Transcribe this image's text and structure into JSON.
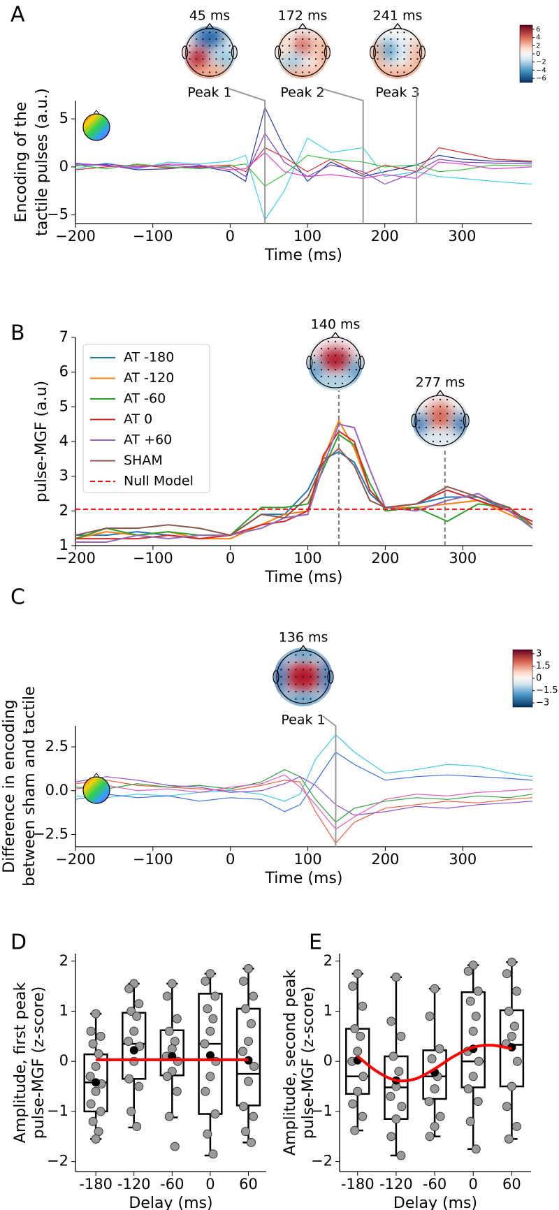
{
  "chart_data": [
    {
      "type": "line",
      "letter": "A",
      "xlabel": "Time (ms)",
      "ylabel": [
        "Encoding of the",
        "tactile pulses (a.u.)"
      ],
      "xlim": [
        -200,
        390
      ],
      "ylim": [
        -5.9,
        6.9
      ],
      "xticks": [
        {
          "value": -200,
          "label": "−200"
        },
        {
          "value": -100,
          "label": "−100"
        },
        0,
        100,
        200,
        300
      ],
      "yticks": [
        {
          "value": -5,
          "label": "−5"
        },
        0,
        5
      ],
      "x": [
        -200,
        -160,
        -120,
        -80,
        -40,
        0,
        20,
        45,
        70,
        100,
        130,
        172,
        200,
        241,
        270,
        300,
        340,
        390
      ],
      "series": [
        {
          "color": "#2a3a9a",
          "values": [
            0.3,
            0.2,
            -0.3,
            -0.2,
            0.1,
            -0.5,
            -1.5,
            6.2,
            2.0,
            -1.5,
            0.5,
            -1.0,
            -0.5,
            0.2,
            1.2,
            0.8,
            0.6,
            0.5
          ]
        },
        {
          "color": "#40d0e8",
          "values": [
            -0.2,
            0.4,
            -0.2,
            0.5,
            0.3,
            0.6,
            1.2,
            -5.5,
            -2.5,
            3.0,
            1.5,
            2.0,
            -1.0,
            -0.5,
            -1.0,
            -1.2,
            -1.5,
            -1.8
          ]
        },
        {
          "color": "#d03030",
          "values": [
            -0.3,
            0.0,
            0.2,
            -0.1,
            0.0,
            0.2,
            -0.5,
            2.0,
            1.0,
            -0.5,
            0.8,
            -0.8,
            0.2,
            -0.5,
            2.0,
            1.5,
            0.8,
            0.6
          ]
        },
        {
          "color": "#8040c0",
          "values": [
            0.1,
            0.3,
            0.0,
            0.2,
            -0.1,
            0.0,
            -1.0,
            3.5,
            0.5,
            -1.0,
            0.2,
            -0.5,
            -1.8,
            -0.5,
            0.8,
            0.5,
            0.4,
            0.3
          ]
        },
        {
          "color": "#40c040",
          "values": [
            0.2,
            -0.2,
            0.3,
            0.0,
            -0.2,
            0.1,
            0.3,
            -2.0,
            -0.8,
            1.2,
            0.8,
            0.5,
            0.0,
            0.2,
            -0.5,
            -0.3,
            0.2,
            0.1
          ]
        },
        {
          "color": "#e040d0",
          "values": [
            0.4,
            0.1,
            -0.1,
            0.3,
            0.2,
            -0.3,
            -0.2,
            1.5,
            -0.5,
            -1.0,
            -0.8,
            -1.2,
            -0.8,
            -1.2,
            0.5,
            0.3,
            -0.2,
            0.0
          ]
        }
      ],
      "peaks": [
        {
          "x": 45,
          "label": "45 ms",
          "name": "Peak 1"
        },
        {
          "x": 172,
          "label": "172 ms",
          "name": "Peak 2"
        },
        {
          "x": 241,
          "label": "241 ms",
          "name": "Peak 3"
        }
      ],
      "colorbar": {
        "lim": [
          -7,
          7
        ],
        "ticks": [
          6,
          4,
          2,
          0,
          {
            "value": -2,
            "label": "−2"
          },
          {
            "value": -4,
            "label": "−4"
          },
          {
            "value": -6,
            "label": "−6"
          }
        ]
      }
    },
    {
      "type": "line",
      "letter": "B",
      "xlabel": "Time (ms)",
      "ylabel": [
        "pulse-MGF (a.u)"
      ],
      "xlim": [
        -200,
        390
      ],
      "ylim": [
        1,
        7
      ],
      "xticks": [
        {
          "value": -200,
          "label": "−200"
        },
        {
          "value": -100,
          "label": "−100"
        },
        0,
        100,
        200,
        300
      ],
      "yticks": [
        1,
        2,
        3,
        4,
        5,
        6,
        7
      ],
      "x": [
        -200,
        -160,
        -120,
        -80,
        -40,
        0,
        40,
        70,
        100,
        120,
        140,
        160,
        180,
        200,
        240,
        280,
        320,
        360,
        390
      ],
      "legend": "upper left",
      "series": [
        {
          "name": "AT  -180",
          "color": "#1f77b4",
          "values": [
            1.3,
            1.3,
            1.4,
            1.3,
            1.2,
            1.3,
            1.9,
            1.9,
            2.6,
            3.5,
            3.7,
            3.4,
            2.5,
            2.1,
            2.2,
            2.4,
            2.4,
            2.0,
            1.7
          ]
        },
        {
          "name": "AT  -120",
          "color": "#ff7f0e",
          "values": [
            1.2,
            1.4,
            1.3,
            1.4,
            1.2,
            1.2,
            1.6,
            1.9,
            2.0,
            3.5,
            4.6,
            3.8,
            2.6,
            2.1,
            2.1,
            2.2,
            2.3,
            1.9,
            1.6
          ]
        },
        {
          "name": "AT  -60",
          "color": "#2ca02c",
          "values": [
            1.2,
            1.5,
            1.3,
            1.4,
            1.3,
            1.3,
            2.1,
            2.1,
            2.2,
            3.2,
            4.2,
            3.9,
            2.8,
            2.0,
            2.1,
            1.7,
            2.2,
            2.1,
            1.5
          ]
        },
        {
          "name": "AT  0",
          "color": "#d62728",
          "values": [
            1.2,
            1.2,
            1.2,
            1.3,
            1.2,
            1.3,
            1.6,
            1.7,
            2.0,
            3.6,
            4.3,
            4.0,
            2.6,
            2.1,
            2.2,
            2.6,
            2.3,
            2.0,
            1.7
          ]
        },
        {
          "name": "AT  +60",
          "color": "#9467bd",
          "values": [
            1.1,
            1.1,
            1.3,
            1.2,
            1.3,
            1.3,
            1.5,
            1.8,
            1.9,
            3.3,
            4.5,
            4.4,
            3.2,
            2.1,
            2.0,
            2.3,
            2.5,
            2.0,
            1.5
          ]
        },
        {
          "name": "SHAM",
          "color": "#8c564b",
          "values": [
            1.3,
            1.5,
            1.5,
            1.6,
            1.5,
            1.3,
            1.9,
            1.8,
            2.4,
            3.4,
            3.8,
            3.3,
            2.3,
            2.1,
            2.2,
            2.7,
            2.4,
            2.1,
            1.6
          ]
        }
      ],
      "reference_line": {
        "name": "Null Model",
        "value": 2.05,
        "color": "#ff0000",
        "dashed": true
      },
      "peaks": [
        {
          "x": 140,
          "label": "140 ms"
        },
        {
          "x": 277,
          "label": "277 ms"
        }
      ]
    },
    {
      "type": "line",
      "letter": "C",
      "xlabel": "Time (ms)",
      "ylabel": [
        "Difference in encoding",
        "between sham and tactile"
      ],
      "xlim": [
        -200,
        390
      ],
      "ylim": [
        -3.2,
        3.7
      ],
      "xticks": [
        {
          "value": -200,
          "label": "−200"
        },
        {
          "value": -100,
          "label": "−100"
        },
        0,
        100,
        200,
        300
      ],
      "yticks": [
        {
          "value": -2.5,
          "label": "−2.5"
        },
        {
          "value": 0,
          "label": "0.0"
        },
        2.5
      ],
      "x": [
        -200,
        -160,
        -120,
        -80,
        -40,
        0,
        40,
        70,
        90,
        110,
        136,
        160,
        200,
        240,
        280,
        320,
        360,
        390
      ],
      "series": [
        {
          "color": "#f06040",
          "values": [
            0.4,
            0.6,
            0.3,
            0.2,
            0.1,
            0.0,
            0.3,
            0.6,
            0.5,
            -1.2,
            -3.0,
            -1.8,
            -1.0,
            -0.8,
            -0.6,
            -0.7,
            -0.5,
            -0.4
          ]
        },
        {
          "color": "#40c8e0",
          "values": [
            -0.3,
            -0.4,
            -0.2,
            -0.3,
            -0.1,
            0.0,
            -0.2,
            -0.6,
            -0.2,
            1.8,
            3.2,
            2.2,
            1.0,
            1.2,
            1.5,
            1.4,
            1.0,
            0.8
          ]
        },
        {
          "color": "#30a040",
          "values": [
            0.2,
            0.1,
            0.4,
            0.2,
            0.3,
            0.1,
            0.5,
            1.2,
            0.8,
            -0.5,
            -1.8,
            -1.0,
            -0.6,
            -0.4,
            -0.5,
            -0.3,
            -0.4,
            -0.2
          ]
        },
        {
          "color": "#9050d0",
          "values": [
            0.5,
            0.8,
            0.6,
            0.3,
            0.2,
            -0.1,
            0.0,
            0.4,
            0.8,
            0.3,
            -0.8,
            -1.4,
            -1.2,
            -0.9,
            -1.0,
            -0.8,
            -0.7,
            -0.6
          ]
        },
        {
          "color": "#4070e0",
          "values": [
            -0.5,
            -0.2,
            -0.4,
            -0.3,
            -0.6,
            -0.4,
            -0.5,
            -1.2,
            -0.8,
            0.5,
            2.2,
            1.5,
            0.6,
            0.8,
            0.9,
            0.8,
            0.7,
            0.6
          ]
        },
        {
          "color": "#e060c0",
          "values": [
            0.1,
            0.3,
            0.0,
            0.1,
            -0.1,
            0.2,
            0.4,
            0.9,
            0.2,
            -0.8,
            -2.2,
            -1.5,
            -0.5,
            -0.2,
            -0.3,
            -0.1,
            0.0,
            0.1
          ]
        }
      ],
      "peaks": [
        {
          "x": 136,
          "label": "136 ms",
          "name": "Peak 1"
        }
      ],
      "colorbar": {
        "lim": [
          -3.5,
          3.5
        ],
        "ticks": [
          3,
          1.5,
          0,
          {
            "value": -1.5,
            "label": "−1.5"
          },
          {
            "value": -3,
            "label": "−3"
          }
        ]
      }
    },
    {
      "type": "box",
      "letter": "D",
      "xlabel": "Delay (ms)",
      "ylabel": [
        "Amplitude, first peak",
        "pulse-MGF (z-score)"
      ],
      "xlim": [
        -212,
        88
      ],
      "ylim": [
        -2.2,
        2.15
      ],
      "xticks": [
        -180,
        -120,
        -60,
        0,
        60
      ],
      "yticks": [
        {
          "value": -2,
          "label": "−2"
        },
        {
          "value": -1,
          "label": "−1"
        },
        0,
        1,
        2
      ],
      "x": [
        -180,
        -120,
        -60,
        0,
        60
      ],
      "boxes": [
        {
          "whisker_low": -1.55,
          "q1": -1.0,
          "median": -0.42,
          "q3": 0.14,
          "whisker_high": 0.95,
          "mean": -0.42,
          "points": [
            0.95,
            0.6,
            0.5,
            0.35,
            0.15,
            -0.1,
            -0.3,
            -0.45,
            -0.6,
            -0.85,
            -1.0,
            -1.2,
            -1.4,
            -1.55
          ]
        },
        {
          "whisker_low": -1.32,
          "q1": -0.35,
          "median": 0.35,
          "q3": 0.97,
          "whisker_high": 1.55,
          "mean": 0.22,
          "points": [
            1.55,
            1.45,
            1.15,
            1.0,
            0.9,
            0.6,
            0.4,
            0.3,
            0.0,
            -0.35,
            -0.5,
            -1.0,
            -1.3
          ]
        },
        {
          "whisker_low": -1.12,
          "q1": -0.28,
          "median": 0.03,
          "q3": 0.62,
          "whisker_high": 1.55,
          "mean": 0.1,
          "points": [
            1.55,
            1.3,
            0.85,
            0.6,
            0.4,
            0.25,
            0.1,
            0.0,
            -0.2,
            -0.3,
            -0.6,
            -1.1,
            -1.7
          ]
        },
        {
          "whisker_low": -1.88,
          "q1": -1.05,
          "median": 0.35,
          "q3": 1.35,
          "whisker_high": 1.75,
          "mean": 0.12,
          "points": [
            1.75,
            1.6,
            1.3,
            1.05,
            0.85,
            0.6,
            0.35,
            0.0,
            -0.3,
            -0.6,
            -1.05,
            -1.45,
            -1.85
          ]
        },
        {
          "whisker_low": -1.62,
          "q1": -0.88,
          "median": -0.25,
          "q3": 1.05,
          "whisker_high": 1.85,
          "mean": 0.02,
          "points": [
            1.85,
            1.6,
            1.3,
            1.05,
            0.75,
            0.4,
            0.2,
            -0.1,
            -0.4,
            -0.9,
            -1.1,
            -1.4,
            -1.62
          ]
        }
      ],
      "fit": {
        "color": "#ff0000",
        "x": [
          -180,
          60
        ],
        "values": [
          0.03,
          0.03
        ]
      }
    },
    {
      "type": "box",
      "letter": "E",
      "xlabel": "Delay (ms)",
      "ylabel": [
        "Amplitude, second peak",
        "pulse-MGF (z-score)"
      ],
      "xlim": [
        -208,
        90
      ],
      "ylim": [
        -2.2,
        2.15
      ],
      "xticks": [
        -180,
        -120,
        -60,
        0,
        60
      ],
      "yticks": [
        {
          "value": -2,
          "label": "−2"
        },
        {
          "value": -1,
          "label": "−1"
        },
        0,
        1,
        2
      ],
      "x": [
        -180,
        -120,
        -60,
        0,
        60
      ],
      "boxes": [
        {
          "whisker_low": -1.38,
          "q1": -0.65,
          "median": -0.3,
          "q3": 0.65,
          "whisker_high": 1.75,
          "mean": 0.02,
          "points": [
            1.75,
            1.5,
            1.1,
            0.65,
            0.5,
            0.2,
            0.0,
            -0.3,
            -0.6,
            -0.85,
            -1.1,
            -1.38
          ]
        },
        {
          "whisker_low": -1.88,
          "q1": -1.15,
          "median": -0.52,
          "q3": 0.1,
          "whisker_high": 1.68,
          "mean": -0.38,
          "points": [
            1.68,
            0.8,
            0.5,
            0.1,
            -0.2,
            -0.5,
            -0.7,
            -0.9,
            -1.15,
            -1.5,
            -1.88
          ]
        },
        {
          "whisker_low": -1.5,
          "q1": -0.75,
          "median": -0.3,
          "q3": 0.22,
          "whisker_high": 1.45,
          "mean": -0.22,
          "points": [
            1.45,
            0.9,
            0.25,
            0.05,
            -0.3,
            -0.55,
            -0.8,
            -1.1,
            -1.3,
            -1.5
          ]
        },
        {
          "whisker_low": -1.75,
          "q1": -0.52,
          "median": 0.0,
          "q3": 1.38,
          "whisker_high": 1.92,
          "mean": 0.25,
          "points": [
            1.92,
            1.8,
            1.4,
            1.2,
            0.9,
            0.6,
            0.2,
            0.0,
            -0.3,
            -0.55,
            -0.8,
            -1.2,
            -1.75
          ]
        },
        {
          "whisker_low": -1.55,
          "q1": -0.5,
          "median": 0.33,
          "q3": 1.02,
          "whisker_high": 1.98,
          "mean": 0.28,
          "points": [
            1.98,
            1.75,
            1.4,
            1.0,
            0.7,
            0.5,
            0.35,
            0.0,
            -0.5,
            -0.9,
            -1.3,
            -1.55
          ]
        }
      ],
      "fit": {
        "color": "#ff0000",
        "x": [
          -180,
          -150,
          -120,
          -90,
          -60,
          -30,
          0,
          30,
          60
        ],
        "values": [
          0.1,
          -0.2,
          -0.38,
          -0.35,
          -0.15,
          0.1,
          0.28,
          0.32,
          0.25
        ]
      }
    }
  ]
}
